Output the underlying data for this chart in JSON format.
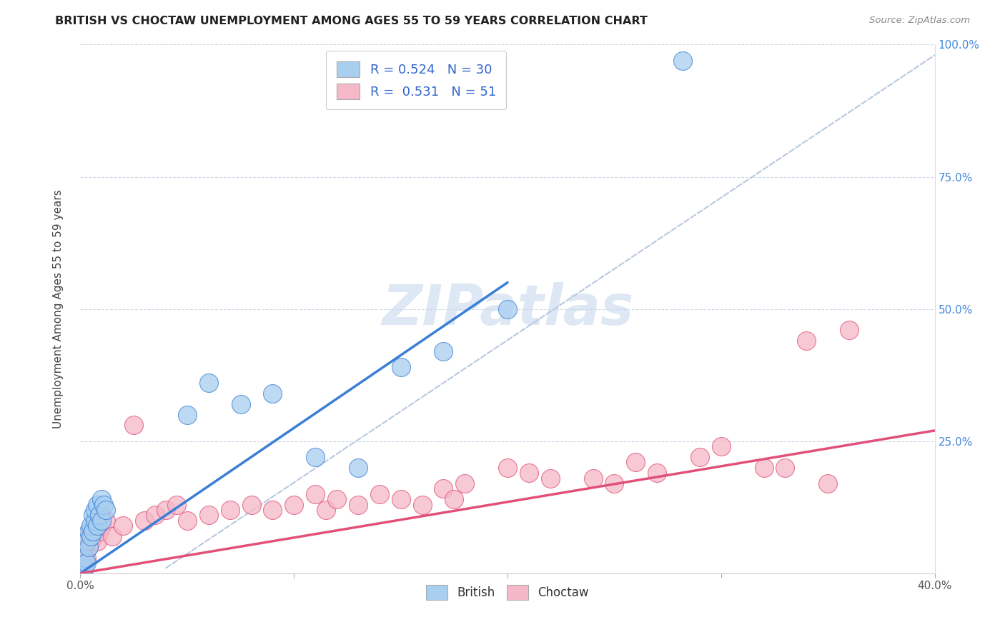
{
  "title": "BRITISH VS CHOCTAW UNEMPLOYMENT AMONG AGES 55 TO 59 YEARS CORRELATION CHART",
  "source": "Source: ZipAtlas.com",
  "ylabel": "Unemployment Among Ages 55 to 59 years",
  "xlim": [
    0.0,
    0.4
  ],
  "ylim": [
    0.0,
    1.0
  ],
  "british_R": 0.524,
  "british_N": 30,
  "choctaw_R": 0.531,
  "choctaw_N": 51,
  "british_color": "#a8cef0",
  "choctaw_color": "#f5b8c8",
  "british_line_color": "#3a7fd5",
  "choctaw_line_color": "#e0507a",
  "ref_line_color": "#b8c8e0",
  "watermark_color": "#d0dff0",
  "background_color": "#ffffff",
  "british_x": [
    0.001,
    0.002,
    0.002,
    0.003,
    0.003,
    0.004,
    0.004,
    0.005,
    0.005,
    0.006,
    0.006,
    0.007,
    0.007,
    0.008,
    0.008,
    0.009,
    0.01,
    0.01,
    0.011,
    0.012,
    0.05,
    0.06,
    0.075,
    0.09,
    0.11,
    0.13,
    0.15,
    0.17,
    0.2,
    0.282
  ],
  "british_y": [
    0.005,
    0.01,
    0.03,
    0.02,
    0.06,
    0.05,
    0.08,
    0.07,
    0.09,
    0.08,
    0.11,
    0.1,
    0.12,
    0.09,
    0.13,
    0.11,
    0.1,
    0.14,
    0.13,
    0.12,
    0.3,
    0.36,
    0.32,
    0.34,
    0.22,
    0.2,
    0.39,
    0.42,
    0.5,
    0.97
  ],
  "choctaw_x": [
    0.001,
    0.002,
    0.003,
    0.003,
    0.004,
    0.005,
    0.005,
    0.006,
    0.007,
    0.008,
    0.009,
    0.01,
    0.01,
    0.012,
    0.015,
    0.02,
    0.025,
    0.03,
    0.035,
    0.04,
    0.045,
    0.05,
    0.06,
    0.07,
    0.08,
    0.09,
    0.1,
    0.11,
    0.115,
    0.12,
    0.13,
    0.14,
    0.15,
    0.16,
    0.17,
    0.175,
    0.18,
    0.2,
    0.21,
    0.22,
    0.24,
    0.25,
    0.26,
    0.27,
    0.29,
    0.3,
    0.32,
    0.33,
    0.34,
    0.35,
    0.36
  ],
  "choctaw_y": [
    0.02,
    0.04,
    0.03,
    0.07,
    0.05,
    0.08,
    0.06,
    0.07,
    0.09,
    0.06,
    0.08,
    0.09,
    0.11,
    0.1,
    0.07,
    0.09,
    0.28,
    0.1,
    0.11,
    0.12,
    0.13,
    0.1,
    0.11,
    0.12,
    0.13,
    0.12,
    0.13,
    0.15,
    0.12,
    0.14,
    0.13,
    0.15,
    0.14,
    0.13,
    0.16,
    0.14,
    0.17,
    0.2,
    0.19,
    0.18,
    0.18,
    0.17,
    0.21,
    0.19,
    0.22,
    0.24,
    0.2,
    0.2,
    0.44,
    0.17,
    0.46
  ],
  "brit_line_x0": 0.0,
  "brit_line_y0": 0.0,
  "brit_line_x1": 0.2,
  "brit_line_y1": 0.55,
  "choc_line_x0": 0.0,
  "choc_line_y0": 0.0,
  "choc_line_x1": 0.4,
  "choc_line_y1": 0.27,
  "ref_line_x0": 0.04,
  "ref_line_y0": 0.01,
  "ref_line_x1": 0.4,
  "ref_line_y1": 0.98
}
